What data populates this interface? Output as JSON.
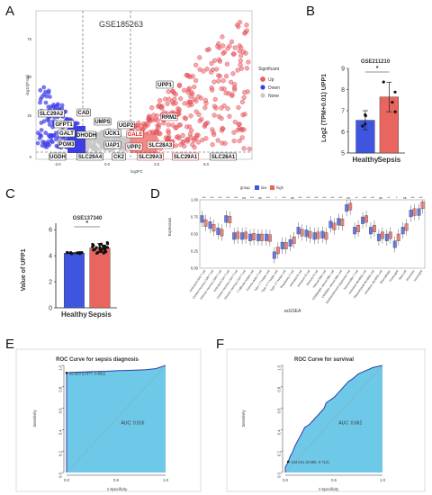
{
  "panels": {
    "A": "A",
    "B": "B",
    "C": "C",
    "D": "D",
    "E": "E",
    "F": "F"
  },
  "colors": {
    "up": "#e8635f",
    "down": "#3d3de8",
    "none": "#c8c8c8",
    "healthy": "#3f55e0",
    "sepsis": "#e8665f",
    "roc_fill": "#6ec9e8",
    "roc_line": "#2d3ca8"
  },
  "chart_data": [
    {
      "id": "A",
      "type": "scatter",
      "title": "GSE185263",
      "xlabel": "log2FC",
      "ylabel": "-log10(P.Val)",
      "x_ticks": [
        "-2.5",
        "0.0",
        "2.5",
        "5.0"
      ],
      "y_ticks": [
        "0",
        "25",
        "50",
        "75"
      ],
      "legend": {
        "title": "Significant",
        "entries": [
          "Up",
          "Down",
          "None"
        ],
        "placement": "right"
      },
      "genes": [
        "UPP1",
        "RRM2",
        "SLC29A2",
        "CAD",
        "GFPT1",
        "UMPS",
        "UGP2",
        "DHODH",
        "GALT",
        "UCK1",
        "GALE",
        "PGM3",
        "UAP1",
        "UPP2",
        "SLC28A3",
        "UGDH",
        "SLC29A4",
        "CK2",
        "SLC29A3",
        "SLC29A1",
        "SLC28A1"
      ]
    },
    {
      "id": "B",
      "type": "bar",
      "title": "GSE211210",
      "ylabel": "Log2 (TPM+0.01)\nUPP1",
      "categories": [
        "Healthy",
        "Sepsis"
      ],
      "values": [
        6.55,
        7.65
      ],
      "errors": [
        0.45,
        0.7
      ],
      "y_ticks": [
        "5",
        "6",
        "7",
        "8",
        "9"
      ],
      "ylim": [
        5,
        9
      ],
      "significance": "*"
    },
    {
      "id": "C",
      "type": "bar",
      "title": "GSE137340",
      "ylabel": "Value of UPP1",
      "categories": [
        "Healthy",
        "Sepsis"
      ],
      "values": [
        4.2,
        4.6
      ],
      "errors": [
        0.05,
        0.35
      ],
      "y_ticks": [
        "0",
        "2",
        "4",
        "6"
      ],
      "ylim": [
        0,
        6.5
      ],
      "significance": "*"
    },
    {
      "id": "D",
      "type": "box",
      "ylabel": "Expression",
      "xlabel": "ssGSEA",
      "legend": {
        "title": "group",
        "entries": [
          "low",
          "high"
        ]
      },
      "y_ticks": [
        "0.00",
        "0.25",
        "0.50",
        "0.75",
        "1.00"
      ],
      "ylim": [
        0,
        1
      ],
      "cells": [
        "Activated CD8 T cell",
        "Central memory CD8 T cell",
        "Effector memory CD8 T cell",
        "Activated CD4 T cell",
        "Central memory CD4 T cell",
        "Effector memory CD4 T cell",
        "T follicular helper cell",
        "Gamma delta T cell",
        "Type 1 T helper cell",
        "Type 17 T helper cell",
        "Type 2 T helper cell",
        "Regulatory T cell",
        "Activated B cell",
        "Immature B cell",
        "Memory B cell",
        "Natural killer cell",
        "CD56bright natural killer cell",
        "CD56dim natural killer cell",
        "Myeloid derived suppressor cell",
        "Natural killer T cell",
        "Activated dendritic cell",
        "Plasmacytoid dendritic cell",
        "Immature dendritic cell",
        "Macrophage",
        "Eosinophil",
        "Mast cell",
        "Monocyte",
        "Neutrophil"
      ],
      "low_medians": [
        0.72,
        0.63,
        0.54,
        0.72,
        0.47,
        0.47,
        0.45,
        0.45,
        0.45,
        0.19,
        0.33,
        0.37,
        0.55,
        0.51,
        0.47,
        0.49,
        0.64,
        0.68,
        0.88,
        0.55,
        0.7,
        0.55,
        0.45,
        0.45,
        0.35,
        0.55,
        0.8,
        0.82
      ],
      "high_medians": [
        0.66,
        0.59,
        0.52,
        0.71,
        0.48,
        0.48,
        0.46,
        0.45,
        0.44,
        0.26,
        0.33,
        0.41,
        0.52,
        0.49,
        0.48,
        0.47,
        0.61,
        0.67,
        0.9,
        0.58,
        0.72,
        0.58,
        0.48,
        0.48,
        0.45,
        0.6,
        0.82,
        0.92
      ],
      "significance": [
        "***",
        "***",
        "***",
        "***",
        "***",
        "ns",
        "***",
        "ns",
        "***",
        "*",
        "***",
        "ns",
        "***",
        "***",
        "***",
        "***",
        "***",
        "***",
        "ns",
        "**",
        "***",
        "***",
        "ns",
        "**",
        "*",
        "ns",
        "***",
        "***"
      ]
    },
    {
      "id": "E",
      "type": "area",
      "title": "ROC Curve for sepsis diagnosis",
      "xlabel": "1-Specificity",
      "ylabel": "Sensitivity",
      "x_ticks": [
        "0.0",
        "0.5",
        "1.0"
      ],
      "y_ticks": [
        "0.0",
        "0.2",
        "0.4",
        "0.6",
        "0.8",
        "1.0"
      ],
      "x": [
        0.0,
        0.0,
        0.0,
        0.02,
        0.05,
        0.12,
        0.2,
        0.3,
        0.4,
        0.5,
        0.6,
        0.7,
        0.8,
        0.9,
        0.95,
        1.0
      ],
      "y": [
        0.0,
        0.9,
        0.93,
        0.933,
        0.935,
        0.937,
        0.94,
        0.943,
        0.945,
        0.95,
        0.953,
        0.956,
        0.96,
        0.97,
        0.985,
        1.0
      ],
      "annotation": "55.933 (0.977, 0.882)",
      "auc_label": "AUC: 0.916"
    },
    {
      "id": "F",
      "type": "area",
      "title": "ROC Curve for survival",
      "xlabel": "1-Specificity",
      "ylabel": "Sensitivity",
      "x_ticks": [
        "0.0",
        "0.5",
        "1.0"
      ],
      "y_ticks": [
        "0.0",
        "0.2",
        "0.4",
        "0.6",
        "0.8",
        "1.0"
      ],
      "x": [
        0.0,
        0.0,
        0.03,
        0.05,
        0.08,
        0.1,
        0.13,
        0.16,
        0.2,
        0.25,
        0.3,
        0.35,
        0.4,
        0.42,
        0.5,
        0.55,
        0.6,
        0.65,
        0.7,
        0.75,
        0.8,
        0.85,
        0.9,
        0.95,
        1.0
      ],
      "y": [
        0.0,
        0.05,
        0.1,
        0.15,
        0.2,
        0.25,
        0.3,
        0.35,
        0.42,
        0.45,
        0.5,
        0.55,
        0.6,
        0.65,
        0.7,
        0.75,
        0.8,
        0.85,
        0.88,
        0.92,
        0.94,
        0.96,
        0.98,
        0.99,
        1.0
      ],
      "annotation": "124.041 (0.590, 0.712)",
      "auc_label": "AUC: 0.662"
    }
  ]
}
